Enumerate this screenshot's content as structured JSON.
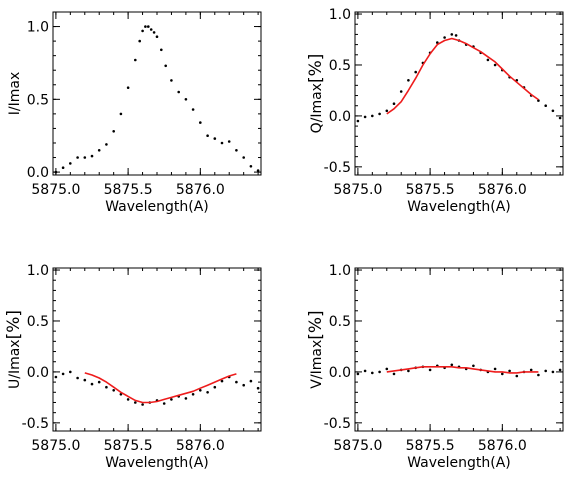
{
  "chart_data": [
    {
      "type": "scatter",
      "panel": "I",
      "xlabel": "Wavelength(A)",
      "ylabel": "I/Imax",
      "xlim": [
        5874.98,
        5876.42
      ],
      "ylim": [
        -0.02,
        1.1
      ],
      "xticks": [
        5875.0,
        5875.5,
        5876.0
      ],
      "xtick_labels": [
        "5875.0",
        "5875.5",
        "5876.0"
      ],
      "yticks": [
        0.0,
        0.5,
        1.0
      ],
      "ytick_labels": [
        "0.0",
        "0.5",
        "1.0"
      ],
      "grid": false,
      "series": [
        {
          "kind": "observed",
          "marker": "dot",
          "x": [
            5875.0,
            5875.05,
            5875.1,
            5875.15,
            5875.2,
            5875.25,
            5875.3,
            5875.35,
            5875.4,
            5875.45,
            5875.5,
            5875.55,
            5875.58,
            5875.6,
            5875.62,
            5875.64,
            5875.66,
            5875.68,
            5875.7,
            5875.73,
            5875.76,
            5875.8,
            5875.85,
            5875.9,
            5875.95,
            5876.0,
            5876.05,
            5876.1,
            5876.15,
            5876.2,
            5876.25,
            5876.3,
            5876.35,
            5876.4
          ],
          "y": [
            0.0,
            0.03,
            0.06,
            0.1,
            0.1,
            0.11,
            0.15,
            0.19,
            0.28,
            0.4,
            0.58,
            0.77,
            0.9,
            0.97,
            1.0,
            1.0,
            0.98,
            0.96,
            0.93,
            0.84,
            0.73,
            0.63,
            0.55,
            0.5,
            0.43,
            0.34,
            0.25,
            0.23,
            0.2,
            0.21,
            0.15,
            0.1,
            0.04,
            0.01
          ]
        }
      ]
    },
    {
      "type": "scatter",
      "panel": "Q",
      "xlabel": "Wavelength(A)",
      "ylabel_text": "Q/Imax",
      "ylabel_unit": "[%]",
      "xlim": [
        5874.98,
        5876.42
      ],
      "ylim": [
        -0.58,
        1.02
      ],
      "xticks": [
        5875.0,
        5875.5,
        5876.0
      ],
      "xtick_labels": [
        "5875.0",
        "5875.5",
        "5876.0"
      ],
      "yticks": [
        -0.5,
        0.0,
        0.5,
        1.0
      ],
      "ytick_labels": [
        "-0.5",
        "0.0",
        "0.5",
        "1.0"
      ],
      "grid": false,
      "series": [
        {
          "kind": "observed",
          "marker": "dot",
          "x": [
            5875.0,
            5875.05,
            5875.1,
            5875.15,
            5875.2,
            5875.25,
            5875.3,
            5875.35,
            5875.4,
            5875.45,
            5875.5,
            5875.55,
            5875.6,
            5875.65,
            5875.68,
            5875.7,
            5875.75,
            5875.8,
            5875.85,
            5875.9,
            5875.95,
            5876.0,
            5876.05,
            5876.1,
            5876.15,
            5876.2,
            5876.25,
            5876.3,
            5876.35,
            5876.4
          ],
          "y": [
            -0.05,
            -0.01,
            0.0,
            0.02,
            0.05,
            0.12,
            0.24,
            0.35,
            0.43,
            0.52,
            0.62,
            0.72,
            0.77,
            0.8,
            0.79,
            0.74,
            0.7,
            0.68,
            0.62,
            0.55,
            0.5,
            0.45,
            0.38,
            0.35,
            0.28,
            0.2,
            0.15,
            0.1,
            0.05,
            -0.02
          ]
        },
        {
          "kind": "fit",
          "color": "#ee1c1c",
          "x": [
            5875.2,
            5875.25,
            5875.3,
            5875.35,
            5875.4,
            5875.45,
            5875.5,
            5875.55,
            5875.6,
            5875.65,
            5875.7,
            5875.75,
            5875.8,
            5875.85,
            5875.9,
            5875.95,
            5876.0,
            5876.05,
            5876.1,
            5876.15,
            5876.2,
            5876.25
          ],
          "y": [
            0.02,
            0.07,
            0.14,
            0.25,
            0.37,
            0.5,
            0.61,
            0.7,
            0.74,
            0.76,
            0.74,
            0.71,
            0.67,
            0.63,
            0.58,
            0.53,
            0.46,
            0.39,
            0.33,
            0.27,
            0.21,
            0.16
          ]
        }
      ]
    },
    {
      "type": "scatter",
      "panel": "U",
      "xlabel": "Wavelength(A)",
      "ylabel_text": "U/Imax",
      "ylabel_unit": "[%]",
      "xlim": [
        5874.98,
        5876.42
      ],
      "ylim": [
        -0.58,
        1.02
      ],
      "xticks": [
        5875.0,
        5875.5,
        5876.0
      ],
      "xtick_labels": [
        "5875.0",
        "5875.5",
        "5876.0"
      ],
      "yticks": [
        -0.5,
        0.0,
        0.5,
        1.0
      ],
      "ytick_labels": [
        "-0.5",
        "0.0",
        "0.5",
        "1.0"
      ],
      "grid": false,
      "series": [
        {
          "kind": "observed",
          "marker": "dot",
          "x": [
            5875.0,
            5875.05,
            5875.1,
            5875.15,
            5875.2,
            5875.25,
            5875.3,
            5875.35,
            5875.4,
            5875.45,
            5875.5,
            5875.55,
            5875.6,
            5875.65,
            5875.7,
            5875.75,
            5875.8,
            5875.85,
            5875.9,
            5875.95,
            5876.0,
            5876.05,
            5876.1,
            5876.15,
            5876.2,
            5876.25,
            5876.3,
            5876.35,
            5876.4
          ],
          "y": [
            -0.05,
            -0.02,
            0.0,
            -0.06,
            -0.08,
            -0.12,
            -0.1,
            -0.15,
            -0.18,
            -0.22,
            -0.27,
            -0.3,
            -0.32,
            -0.3,
            -0.28,
            -0.31,
            -0.27,
            -0.24,
            -0.26,
            -0.22,
            -0.18,
            -0.2,
            -0.15,
            -0.09,
            -0.05,
            -0.1,
            -0.13,
            -0.09,
            -0.16
          ]
        },
        {
          "kind": "fit",
          "color": "#ee1c1c",
          "x": [
            5875.2,
            5875.25,
            5875.3,
            5875.35,
            5875.4,
            5875.45,
            5875.5,
            5875.55,
            5875.6,
            5875.65,
            5875.7,
            5875.75,
            5875.8,
            5875.85,
            5875.9,
            5875.95,
            5876.0,
            5876.05,
            5876.1,
            5876.15,
            5876.2,
            5876.25
          ],
          "y": [
            -0.01,
            -0.03,
            -0.06,
            -0.1,
            -0.15,
            -0.2,
            -0.24,
            -0.28,
            -0.3,
            -0.3,
            -0.29,
            -0.27,
            -0.25,
            -0.23,
            -0.21,
            -0.19,
            -0.16,
            -0.13,
            -0.1,
            -0.07,
            -0.04,
            -0.02
          ]
        }
      ]
    },
    {
      "type": "scatter",
      "panel": "V",
      "xlabel": "Wavelength(A)",
      "ylabel_text": "V/Imax",
      "ylabel_unit": "[%]",
      "xlim": [
        5874.98,
        5876.42
      ],
      "ylim": [
        -0.58,
        1.02
      ],
      "xticks": [
        5875.0,
        5875.5,
        5876.0
      ],
      "xtick_labels": [
        "5875.0",
        "5875.5",
        "5876.0"
      ],
      "yticks": [
        -0.5,
        0.0,
        0.5,
        1.0
      ],
      "ytick_labels": [
        "-0.5",
        "0.0",
        "0.5",
        "1.0"
      ],
      "grid": false,
      "series": [
        {
          "kind": "observed",
          "marker": "dot",
          "x": [
            5875.0,
            5875.05,
            5875.1,
            5875.15,
            5875.2,
            5875.25,
            5875.3,
            5875.35,
            5875.4,
            5875.45,
            5875.5,
            5875.55,
            5875.6,
            5875.65,
            5875.7,
            5875.75,
            5875.8,
            5875.85,
            5875.9,
            5875.95,
            5876.0,
            5876.05,
            5876.1,
            5876.15,
            5876.2,
            5876.25,
            5876.3,
            5876.35,
            5876.4
          ],
          "y": [
            -0.02,
            0.01,
            -0.01,
            0.0,
            0.03,
            -0.02,
            0.02,
            0.01,
            0.04,
            0.05,
            0.02,
            0.06,
            0.04,
            0.07,
            0.05,
            0.03,
            0.06,
            0.02,
            0.0,
            0.03,
            -0.02,
            0.01,
            -0.04,
            0.0,
            0.02,
            -0.03,
            0.01,
            0.0,
            0.02
          ]
        },
        {
          "kind": "fit",
          "color": "#ee1c1c",
          "x": [
            5875.2,
            5875.25,
            5875.3,
            5875.35,
            5875.4,
            5875.45,
            5875.5,
            5875.55,
            5875.6,
            5875.65,
            5875.7,
            5875.75,
            5875.8,
            5875.85,
            5875.9,
            5875.95,
            5876.0,
            5876.05,
            5876.1,
            5876.15,
            5876.2,
            5876.25
          ],
          "y": [
            0.0,
            0.01,
            0.02,
            0.03,
            0.04,
            0.05,
            0.05,
            0.05,
            0.05,
            0.05,
            0.04,
            0.04,
            0.03,
            0.02,
            0.01,
            0.0,
            0.0,
            -0.01,
            -0.01,
            0.0,
            0.0,
            0.0
          ]
        }
      ]
    }
  ]
}
